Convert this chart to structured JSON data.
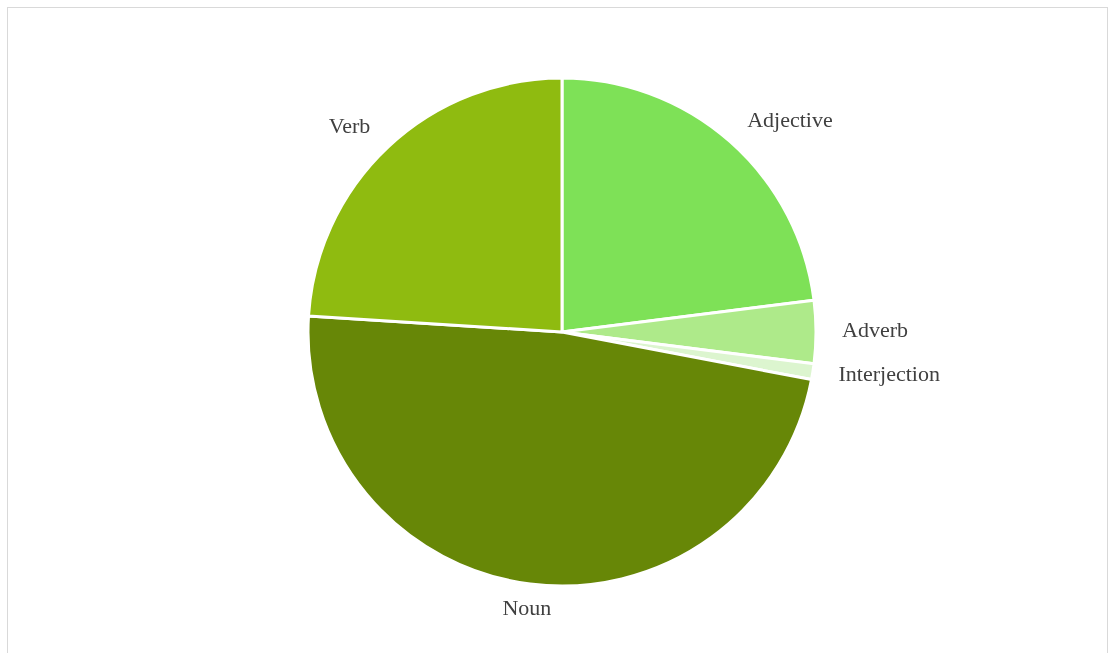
{
  "chart_data": {
    "type": "pie",
    "categories": [
      "Adjective",
      "Adverb",
      "Interjection",
      "Noun",
      "Verb"
    ],
    "values": [
      23,
      4,
      1,
      48,
      24
    ],
    "colors": [
      "#7ee157",
      "#aeea8a",
      "#dcf5cf",
      "#678707",
      "#8fbb10"
    ]
  }
}
